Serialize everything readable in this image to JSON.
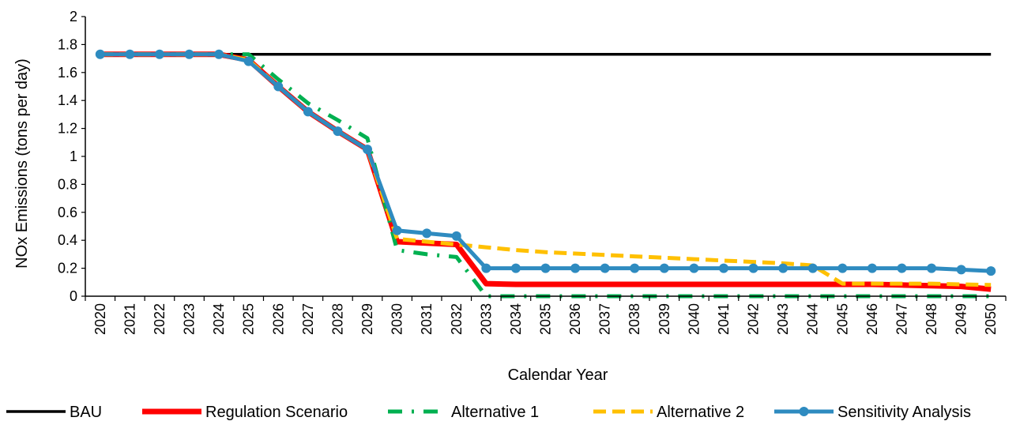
{
  "chart_data": {
    "type": "line",
    "title": "",
    "xlabel": "Calendar Year",
    "ylabel": "NOx Emissions (tons per day)",
    "ylim": [
      0,
      2
    ],
    "yticks": [
      "0",
      "0.2",
      "0.4",
      "0.6",
      "0.8",
      "1",
      "1.2",
      "1.4",
      "1.6",
      "1.8",
      "2"
    ],
    "grid": false,
    "legend_position": "bottom",
    "categories": [
      "2020",
      "2021",
      "2022",
      "2023",
      "2024",
      "2025",
      "2026",
      "2027",
      "2028",
      "2029",
      "2030",
      "2031",
      "2032",
      "2033",
      "2034",
      "2035",
      "2036",
      "2037",
      "2038",
      "2039",
      "2040",
      "2041",
      "2042",
      "2043",
      "2044",
      "2045",
      "2046",
      "2047",
      "2048",
      "2049",
      "2050"
    ],
    "series": [
      {
        "name": "BAU",
        "color": "#000000",
        "style": "solid",
        "values": [
          1.73,
          1.73,
          1.73,
          1.73,
          1.73,
          1.73,
          1.73,
          1.73,
          1.73,
          1.73,
          1.73,
          1.73,
          1.73,
          1.73,
          1.73,
          1.73,
          1.73,
          1.73,
          1.73,
          1.73,
          1.73,
          1.73,
          1.73,
          1.73,
          1.73,
          1.73,
          1.73,
          1.73,
          1.73,
          1.73,
          1.73
        ]
      },
      {
        "name": "Regulation Scenario",
        "color": "#ff0000",
        "style": "solid-thick",
        "values": [
          1.73,
          1.73,
          1.73,
          1.73,
          1.73,
          1.69,
          1.5,
          1.32,
          1.18,
          1.05,
          0.39,
          0.38,
          0.37,
          0.09,
          0.085,
          0.085,
          0.085,
          0.085,
          0.085,
          0.085,
          0.085,
          0.085,
          0.085,
          0.085,
          0.085,
          0.085,
          0.085,
          0.08,
          0.075,
          0.07,
          0.05
        ]
      },
      {
        "name": "Alternative 1",
        "color": "#00b050",
        "style": "dash-dot",
        "values": [
          1.73,
          1.73,
          1.73,
          1.73,
          1.73,
          1.73,
          1.55,
          1.38,
          1.26,
          1.13,
          0.33,
          0.3,
          0.28,
          0.0,
          0.0,
          0.0,
          0.0,
          0.0,
          0.0,
          0.0,
          0.0,
          0.0,
          0.0,
          0.0,
          0.0,
          0.0,
          0.0,
          0.0,
          0.0,
          0.0,
          0.0
        ]
      },
      {
        "name": "Alternative 2",
        "color": "#ffc000",
        "style": "dash",
        "values": [
          1.73,
          1.73,
          1.73,
          1.73,
          1.73,
          1.69,
          1.5,
          1.32,
          1.18,
          1.05,
          0.41,
          0.39,
          0.37,
          0.35,
          0.33,
          0.315,
          0.305,
          0.295,
          0.285,
          0.275,
          0.265,
          0.255,
          0.245,
          0.235,
          0.22,
          0.09,
          0.09,
          0.09,
          0.09,
          0.085,
          0.08
        ]
      },
      {
        "name": "Sensitivity Analysis",
        "color": "#2e8bc0",
        "style": "solid-marker",
        "values": [
          1.73,
          1.73,
          1.73,
          1.73,
          1.73,
          1.68,
          1.5,
          1.32,
          1.18,
          1.05,
          0.47,
          0.45,
          0.43,
          0.2,
          0.2,
          0.2,
          0.2,
          0.2,
          0.2,
          0.2,
          0.2,
          0.2,
          0.2,
          0.2,
          0.2,
          0.2,
          0.2,
          0.2,
          0.2,
          0.19,
          0.18
        ]
      }
    ]
  }
}
